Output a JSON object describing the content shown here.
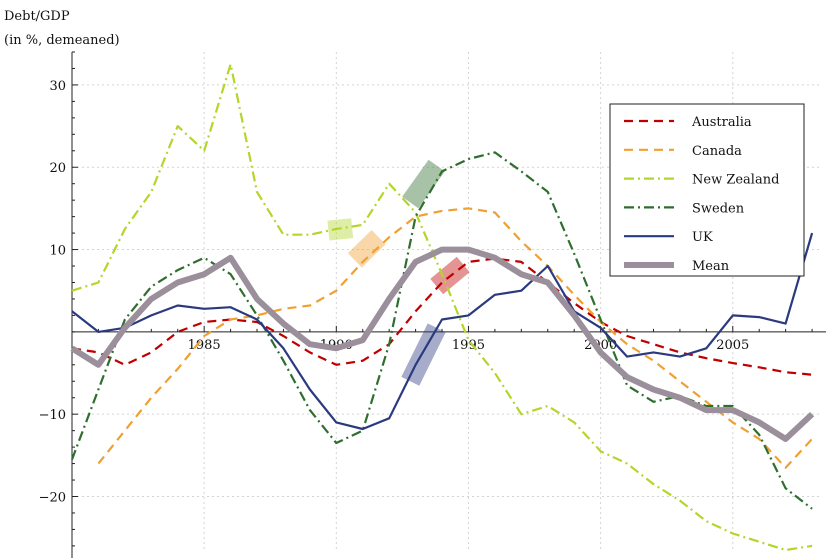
{
  "chart_data": {
    "type": "line",
    "ylabel_lines": [
      "Debt/GDP",
      "(in %, demeaned)"
    ],
    "xlim": [
      1980,
      2008.3
    ],
    "ylim": [
      -26.5,
      34
    ],
    "x_ticks": [
      1985,
      1990,
      1995,
      2000,
      2005
    ],
    "y_ticks": [
      -20,
      -10,
      10,
      20,
      30
    ],
    "grid": true,
    "legend_position": "top-right",
    "series": [
      {
        "name": "Australia",
        "color": "#c00000",
        "style": "dashed",
        "width": 2.2,
        "points": [
          [
            1980,
            -2
          ],
          [
            1981,
            -2.5
          ],
          [
            1982,
            -4
          ],
          [
            1983,
            -2.5
          ],
          [
            1984,
            0
          ],
          [
            1985,
            1.2
          ],
          [
            1986,
            1.5
          ],
          [
            1987,
            1.2
          ],
          [
            1988,
            -0.5
          ],
          [
            1989,
            -2.5
          ],
          [
            1990,
            -4
          ],
          [
            1991,
            -3.5
          ],
          [
            1992,
            -1.5
          ],
          [
            1993,
            2.5
          ],
          [
            1994,
            6
          ],
          [
            1995,
            8.5
          ],
          [
            1996,
            8.9
          ],
          [
            1997,
            8.5
          ],
          [
            1998,
            6
          ],
          [
            1999,
            3.5
          ],
          [
            2000,
            1.2
          ],
          [
            2001,
            -0.5
          ],
          [
            2002,
            -1.5
          ],
          [
            2003,
            -2.5
          ],
          [
            2004,
            -3.2
          ],
          [
            2005,
            -3.8
          ],
          [
            2006,
            -4.3
          ],
          [
            2007,
            -4.9
          ],
          [
            2008,
            -5.2
          ]
        ]
      },
      {
        "name": "Canada",
        "color": "#f0a030",
        "style": "dashed",
        "width": 2.2,
        "points": [
          [
            1981,
            -16
          ],
          [
            1982,
            -12
          ],
          [
            1983,
            -8
          ],
          [
            1984,
            -4.5
          ],
          [
            1985,
            -0.5
          ],
          [
            1986,
            1.5
          ],
          [
            1987,
            2
          ],
          [
            1988,
            2.8
          ],
          [
            1989,
            3.2
          ],
          [
            1990,
            5
          ],
          [
            1991,
            8.5
          ],
          [
            1992,
            11.5
          ],
          [
            1993,
            14
          ],
          [
            1994,
            14.7
          ],
          [
            1995,
            15
          ],
          [
            1996,
            14.5
          ],
          [
            1997,
            11
          ],
          [
            1998,
            8
          ],
          [
            1999,
            4.5
          ],
          [
            2000,
            1.2
          ],
          [
            2001,
            -1.5
          ],
          [
            2002,
            -3.5
          ],
          [
            2003,
            -6
          ],
          [
            2004,
            -8.5
          ],
          [
            2005,
            -11
          ],
          [
            2006,
            -13
          ],
          [
            2007,
            -16.5
          ],
          [
            2008,
            -13
          ]
        ]
      },
      {
        "name": "New Zealand",
        "color": "#b3d62a",
        "style": "dashdot",
        "width": 2.2,
        "points": [
          [
            1980,
            5
          ],
          [
            1981,
            6
          ],
          [
            1982,
            12.5
          ],
          [
            1983,
            17
          ],
          [
            1984,
            25
          ],
          [
            1985,
            22
          ],
          [
            1986,
            32.5
          ],
          [
            1987,
            17
          ],
          [
            1988,
            11.8
          ],
          [
            1989,
            11.8
          ],
          [
            1990,
            12.5
          ],
          [
            1991,
            13
          ],
          [
            1992,
            18
          ],
          [
            1993,
            14.5
          ],
          [
            1994,
            7
          ],
          [
            1995,
            -1
          ],
          [
            1996,
            -5
          ],
          [
            1997,
            -10
          ],
          [
            1998,
            -9
          ],
          [
            1999,
            -11
          ],
          [
            2000,
            -14.5
          ],
          [
            2001,
            -16
          ],
          [
            2002,
            -18.5
          ],
          [
            2003,
            -20.5
          ],
          [
            2004,
            -23
          ],
          [
            2005,
            -24.5
          ],
          [
            2006,
            -25.5
          ],
          [
            2007,
            -26.5
          ],
          [
            2008,
            -26
          ]
        ]
      },
      {
        "name": "Sweden",
        "color": "#2f6e2f",
        "style": "dashdot",
        "width": 2.2,
        "points": [
          [
            1980,
            -15.5
          ],
          [
            1981,
            -7
          ],
          [
            1982,
            1.5
          ],
          [
            1983,
            5.5
          ],
          [
            1984,
            7.5
          ],
          [
            1985,
            9
          ],
          [
            1986,
            7
          ],
          [
            1987,
            2
          ],
          [
            1988,
            -3.5
          ],
          [
            1989,
            -9.5
          ],
          [
            1990,
            -13.5
          ],
          [
            1991,
            -12
          ],
          [
            1992,
            -1.5
          ],
          [
            1993,
            14
          ],
          [
            1994,
            19.5
          ],
          [
            1995,
            21
          ],
          [
            1996,
            21.8
          ],
          [
            1997,
            19.5
          ],
          [
            1998,
            17
          ],
          [
            1999,
            9.5
          ],
          [
            2000,
            1.5
          ],
          [
            2001,
            -6.5
          ],
          [
            2002,
            -8.5
          ],
          [
            2003,
            -7.8
          ],
          [
            2004,
            -9
          ],
          [
            2005,
            -9
          ],
          [
            2006,
            -12.5
          ],
          [
            2007,
            -19
          ],
          [
            2008,
            -21.5
          ]
        ]
      },
      {
        "name": "UK",
        "color": "#2b3a7f",
        "style": "solid",
        "width": 2.2,
        "points": [
          [
            1980,
            2.5
          ],
          [
            1981,
            0
          ],
          [
            1982,
            0.5
          ],
          [
            1983,
            2
          ],
          [
            1984,
            3.2
          ],
          [
            1985,
            2.8
          ],
          [
            1986,
            3
          ],
          [
            1987,
            1.5
          ],
          [
            1988,
            -2
          ],
          [
            1989,
            -7
          ],
          [
            1990,
            -11
          ],
          [
            1991,
            -11.8
          ],
          [
            1992,
            -10.5
          ],
          [
            1993,
            -4
          ],
          [
            1994,
            1.5
          ],
          [
            1995,
            2
          ],
          [
            1996,
            4.5
          ],
          [
            1997,
            5
          ],
          [
            1998,
            8
          ],
          [
            1999,
            2.5
          ],
          [
            2000,
            0.5
          ],
          [
            2001,
            -3
          ],
          [
            2002,
            -2.5
          ],
          [
            2003,
            -3
          ],
          [
            2004,
            -2
          ],
          [
            2005,
            2
          ],
          [
            2006,
            1.8
          ],
          [
            2007,
            1
          ],
          [
            2008,
            12
          ]
        ]
      },
      {
        "name": "Mean",
        "color": "#9a8f9a",
        "style": "solid",
        "width": 6,
        "points": [
          [
            1980,
            -2
          ],
          [
            1981,
            -4
          ],
          [
            1982,
            0.5
          ],
          [
            1983,
            4
          ],
          [
            1984,
            6
          ],
          [
            1985,
            7
          ],
          [
            1986,
            9
          ],
          [
            1987,
            4
          ],
          [
            1988,
            1
          ],
          [
            1989,
            -1.5
          ],
          [
            1990,
            -2
          ],
          [
            1991,
            -1
          ],
          [
            1992,
            4
          ],
          [
            1993,
            8.5
          ],
          [
            1994,
            10
          ],
          [
            1995,
            10
          ],
          [
            1996,
            9
          ],
          [
            1997,
            7
          ],
          [
            1998,
            6
          ],
          [
            1999,
            2
          ],
          [
            2000,
            -2.5
          ],
          [
            2001,
            -5.5
          ],
          [
            2002,
            -7
          ],
          [
            2003,
            -8
          ],
          [
            2004,
            -9.5
          ],
          [
            2005,
            -9.5
          ],
          [
            2006,
            -11
          ],
          [
            2007,
            -13
          ],
          [
            2008,
            -10
          ]
        ]
      }
    ],
    "highlights": [
      {
        "series": "New Zealand",
        "color": "#b3d62a",
        "points": [
          [
            1989.7,
            12.3
          ],
          [
            1990.6,
            12.6
          ]
        ]
      },
      {
        "series": "Canada",
        "color": "#f0a030",
        "points": [
          [
            1990.7,
            8.7
          ],
          [
            1991.6,
            11.5
          ]
        ]
      },
      {
        "series": "Sweden",
        "color": "#2f6e2f",
        "points": [
          [
            1992.8,
            15.7
          ],
          [
            1993.8,
            20.2
          ]
        ]
      },
      {
        "series": "Australia",
        "color": "#c00000",
        "points": [
          [
            1993.8,
            5.5
          ],
          [
            1994.8,
            8.2
          ]
        ]
      },
      {
        "series": "UK",
        "color": "#2b3a7f",
        "points": [
          [
            1992.8,
            -6
          ],
          [
            1993.8,
            0.5
          ]
        ]
      }
    ]
  }
}
